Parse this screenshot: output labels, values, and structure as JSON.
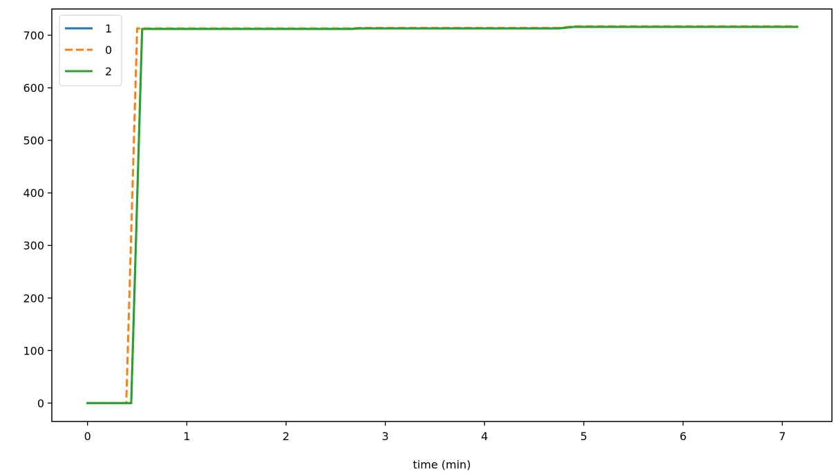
{
  "chart_data": {
    "type": "line",
    "title": "",
    "xlabel": "time (min)",
    "ylabel": "",
    "xlim": [
      -0.36,
      7.5
    ],
    "ylim": [
      -35,
      750
    ],
    "xticks": [
      0,
      1,
      2,
      3,
      4,
      5,
      6,
      7
    ],
    "yticks": [
      0,
      100,
      200,
      300,
      400,
      500,
      600,
      700
    ],
    "grid": false,
    "legend_position": "upper-left",
    "series": [
      {
        "name": "1",
        "color": "#1f77b4",
        "dash": "solid",
        "x": [
          0.0,
          0.1,
          0.2,
          0.3,
          0.44,
          0.55,
          1.0,
          2.0,
          2.65,
          2.75,
          3.0,
          4.0,
          4.75,
          4.9,
          5.0,
          6.0,
          7.0,
          7.15
        ],
        "y": [
          0,
          0,
          0,
          0,
          0,
          712,
          712,
          712,
          712,
          713,
          713,
          713,
          713,
          716,
          716,
          716,
          716,
          716
        ]
      },
      {
        "name": "0",
        "color": "#ff7f0e",
        "dash": "dashed",
        "x": [
          0.0,
          0.1,
          0.2,
          0.3,
          0.39,
          0.5,
          1.0,
          2.0,
          2.65,
          2.75,
          3.0,
          4.0,
          4.75,
          4.9,
          5.0,
          6.0,
          7.0,
          7.15
        ],
        "y": [
          0,
          0,
          0,
          0,
          0,
          713,
          713,
          713,
          713,
          714,
          714,
          714,
          714,
          717,
          717,
          717,
          717,
          717
        ]
      },
      {
        "name": "2",
        "color": "#2ca02c",
        "dash": "solid",
        "x": [
          0.0,
          0.1,
          0.2,
          0.3,
          0.44,
          0.55,
          1.0,
          2.0,
          2.65,
          2.75,
          3.0,
          4.0,
          4.75,
          4.9,
          5.0,
          6.0,
          7.0,
          7.15
        ],
        "y": [
          0,
          0,
          0,
          0,
          0,
          712,
          712,
          712,
          712,
          713,
          713,
          713,
          713,
          716,
          716,
          716,
          716,
          716
        ]
      }
    ]
  }
}
